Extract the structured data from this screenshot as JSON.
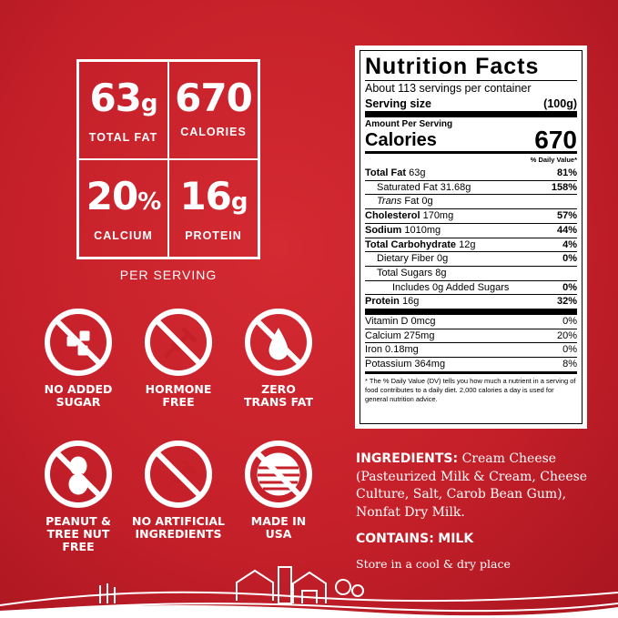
{
  "stats": [
    {
      "number": "63",
      "unit": "g",
      "label": "TOTAL FAT"
    },
    {
      "number": "670",
      "label": "CALORIES"
    },
    {
      "number": "20",
      "unit": "%",
      "label": "CALCIUM"
    },
    {
      "number": "16",
      "unit": "g",
      "label": "PROTEIN"
    }
  ],
  "per_serving": "PER SERVING",
  "badges": [
    {
      "lines": [
        "NO ADDED",
        "SUGAR"
      ]
    },
    {
      "lines": [
        "HORMONE",
        "FREE"
      ]
    },
    {
      "lines": [
        "ZERO",
        "TRANS FAT"
      ]
    },
    {
      "lines": [
        "PEANUT &",
        "TREE NUT",
        "FREE"
      ]
    },
    {
      "lines": [
        "NO ARTIFICIAL",
        "INGREDIENTS"
      ]
    },
    {
      "lines": [
        "MADE IN",
        "USA"
      ]
    }
  ],
  "nutrition": {
    "title": "Nutrition Facts",
    "servings": "About 113 servings per container",
    "serving_size_label": "Serving size",
    "serving_size_value": "(100g)",
    "amount_per_serving": "Amount Per Serving",
    "calories_label": "Calories",
    "calories_value": "670",
    "dv_header": "% Daily Value*",
    "rows": [
      {
        "name": "Total Fat",
        "amount": "63g",
        "dv": "81%"
      },
      {
        "name": "Saturated Fat",
        "amount": "31.68g",
        "dv": "158%"
      },
      {
        "italic": "Trans",
        "name": "Fat",
        "amount": "0g"
      },
      {
        "name": "Cholesterol",
        "amount": "170mg",
        "dv": "57%"
      },
      {
        "name": "Sodium",
        "amount": "1010mg",
        "dv": "44%"
      },
      {
        "name": "Total Carbohydrate",
        "amount": "12g",
        "dv": "4%"
      },
      {
        "name": "Dietary Fiber",
        "amount": "0g",
        "dv": "0%"
      },
      {
        "name": "Total Sugars",
        "amount": "8g"
      },
      {
        "name": "Includes 0g Added Sugars",
        "dv": "0%"
      },
      {
        "name": "Protein",
        "amount": "16g",
        "dv": "32%"
      }
    ],
    "vitamins": [
      {
        "name": "Vitamin D",
        "amount": "0mcg",
        "dv": "0%"
      },
      {
        "name": "Calcium",
        "amount": "275mg",
        "dv": "20%"
      },
      {
        "name": "Iron",
        "amount": "0.18mg",
        "dv": "0%"
      },
      {
        "name": "Potassium",
        "amount": "364mg",
        "dv": "8%"
      }
    ],
    "footnote": "* The % Daily Value (DV) tells you how much a nutrient in a serving of food contributes to a daily diet. 2,000 calories a day is used for general nutrition advice."
  },
  "ingredients": {
    "label": "INGREDIENTS:",
    "text": "Cream Cheese (Pasteurized Milk & Cream, Cheese Culture, Salt, Carob Bean Gum), Nonfat Dry Milk."
  },
  "contains": {
    "label": "CONTAINS:",
    "text": "MILK"
  },
  "storage": "Store in a cool & dry place"
}
